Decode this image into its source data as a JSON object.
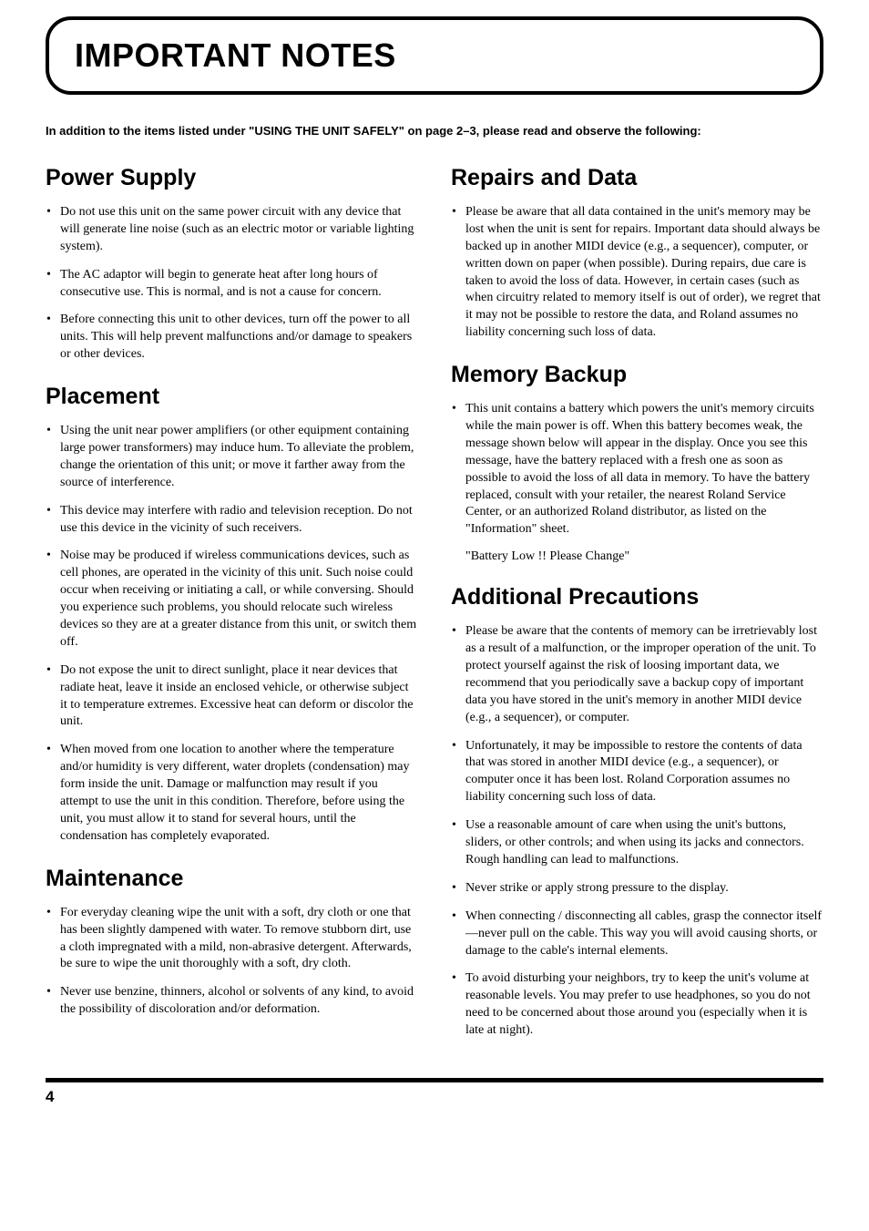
{
  "page": {
    "title": "IMPORTANT NOTES",
    "intro": "In addition to the items listed under \"USING THE UNIT SAFELY\" on page 2–3, please read and observe the following:",
    "page_number": "4"
  },
  "left": {
    "sections": [
      {
        "heading": "Power Supply",
        "items": [
          "Do not use this unit on the same power circuit with any device that will generate line noise (such as an electric motor or variable lighting system).",
          "The AC adaptor will begin to generate heat after long hours of consecutive use. This is normal, and is not a cause for concern.",
          "Before connecting this unit to other devices, turn off the power to all units. This will help prevent malfunctions and/or damage to speakers or other devices."
        ]
      },
      {
        "heading": "Placement",
        "items": [
          "Using the unit near power amplifiers (or other equipment containing large power transformers) may induce hum. To alleviate the problem, change the orientation of this unit; or move it farther away from the source of interference.",
          "This device may interfere with radio and television reception. Do not use this device in the vicinity of such receivers.",
          "Noise may be produced if wireless communications devices, such as cell phones, are operated in the vicinity of this unit. Such noise could occur when receiving or initiating a call, or while conversing. Should you experience such problems, you should relocate such wireless devices so they are at a greater distance from this unit, or switch them off.",
          "Do not expose the unit to direct sunlight, place it near devices that radiate heat, leave it inside an enclosed vehicle, or otherwise subject it to temperature extremes. Excessive heat can deform or discolor the unit.",
          "When moved from one location to another where the temperature and/or humidity is very different, water droplets (condensation) may form inside the unit. Damage or malfunction may result if you attempt to use the unit in this condition. Therefore, before using the unit, you must allow it to stand for several hours, until the condensation has completely evaporated."
        ]
      },
      {
        "heading": "Maintenance",
        "items": [
          "For everyday cleaning wipe the unit with a soft, dry cloth or one that has been slightly dampened with water. To remove stubborn dirt, use a cloth impregnated with a mild, non-abrasive detergent. Afterwards, be sure to wipe the unit thoroughly with a soft, dry cloth.",
          "Never use benzine, thinners, alcohol or solvents of any kind, to avoid the possibility of discoloration and/or deformation."
        ]
      }
    ]
  },
  "right": {
    "sections": [
      {
        "heading": "Repairs and Data",
        "items": [
          "Please be aware that all data contained in the unit's memory may be lost when the unit is sent for repairs. Important data should always be backed up in another MIDI device (e.g., a sequencer), computer, or written down on paper (when possible). During repairs, due care is taken to avoid the loss of data. However, in certain cases (such as when circuitry related to memory itself is out of order), we regret that it may not be possible to restore the data, and Roland assumes no liability concerning such loss of data."
        ]
      },
      {
        "heading": "Memory Backup",
        "items": [
          "This unit contains a battery which powers the unit's memory circuits while the main power is off. When this battery becomes weak, the message shown below will appear in the display. Once you see this message, have the battery replaced with a fresh one as soon as possible to avoid the loss of all data in memory. To have the battery replaced, consult with your retailer, the nearest Roland Service Center, or an authorized Roland distributor, as listed on the \"Information\" sheet."
        ],
        "quote": "\"Battery Low !! Please Change\""
      },
      {
        "heading": "Additional Precautions",
        "items": [
          "Please be aware that the contents of memory can be irretrievably lost as a result of a malfunction, or the improper operation of the unit. To protect yourself against the risk of loosing important data, we recommend that you periodically save a backup copy of important data you have stored in the unit's memory in another MIDI device (e.g., a sequencer), or computer.",
          "Unfortunately, it may be impossible to restore the contents of data that was stored in another MIDI device (e.g., a sequencer), or computer once it has been lost. Roland Corporation assumes no liability concerning such loss of data.",
          "Use a reasonable amount of care when using the unit's buttons, sliders, or other controls; and when using its jacks and connectors. Rough handling can lead to malfunctions.",
          "Never strike or apply strong pressure to the display.",
          "When connecting / disconnecting all cables, grasp the connector itself—never pull on the cable. This way you will avoid causing shorts, or damage to the cable's internal elements.",
          "To avoid disturbing your neighbors, try to keep the unit's volume at reasonable levels. You may prefer to use headphones, so you do not need to be concerned about those around you (especially when it is late at night)."
        ]
      }
    ]
  }
}
